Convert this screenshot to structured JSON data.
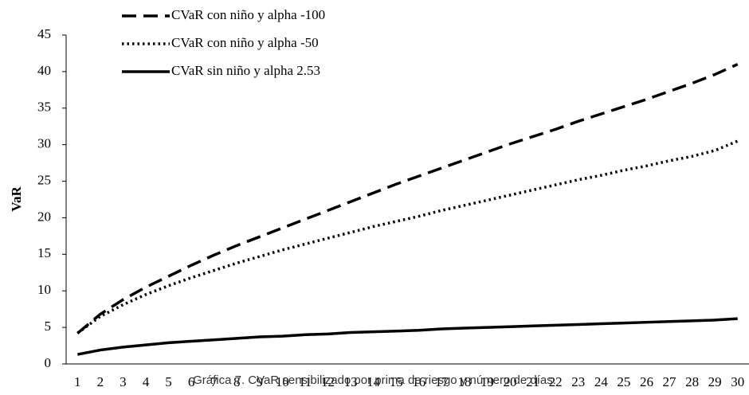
{
  "chart_data": {
    "type": "line",
    "y_label": "VaR",
    "caption": "Gráfica 7. CVaR sensibilizado por prima de riesgo y número de días.",
    "categories": [
      "1",
      "2",
      "3",
      "4",
      "5",
      "6",
      "7",
      "8",
      "9",
      "10",
      "11",
      "12",
      "13",
      "14",
      "15",
      "16",
      "17",
      "18",
      "19",
      "20",
      "21",
      "22",
      "23",
      "24",
      "25",
      "26",
      "27",
      "28",
      "29",
      "30"
    ],
    "ylim": [
      0,
      45
    ],
    "yticks": [
      0,
      5,
      10,
      15,
      20,
      25,
      30,
      35,
      40,
      45
    ],
    "grid": false,
    "legend": "top-left",
    "series": [
      {
        "name": "CVaR con niño y alpha -100",
        "color": "#000000",
        "dash": "dashed",
        "values": [
          4.2,
          6.8,
          8.8,
          10.5,
          12.0,
          13.5,
          14.9,
          16.2,
          17.4,
          18.6,
          19.8,
          21.0,
          22.2,
          23.4,
          24.6,
          25.7,
          26.8,
          27.9,
          29.0,
          30.1,
          31.1,
          32.1,
          33.2,
          34.2,
          35.2,
          36.2,
          37.3,
          38.4,
          39.6,
          41.0
        ]
      },
      {
        "name": "CVaR con niño y alpha -50",
        "color": "#000000",
        "dash": "dotted",
        "values": [
          4.2,
          6.5,
          8.1,
          9.5,
          10.7,
          11.8,
          12.8,
          13.8,
          14.7,
          15.6,
          16.4,
          17.2,
          18.0,
          18.8,
          19.5,
          20.2,
          21.0,
          21.7,
          22.4,
          23.1,
          23.8,
          24.5,
          25.2,
          25.8,
          26.5,
          27.1,
          27.8,
          28.4,
          29.2,
          30.5
        ]
      },
      {
        "name": "CVaR sin niño y alpha 2.53",
        "color": "#000000",
        "dash": "solid",
        "values": [
          1.3,
          1.9,
          2.3,
          2.6,
          2.9,
          3.1,
          3.3,
          3.5,
          3.7,
          3.8,
          4.0,
          4.1,
          4.3,
          4.4,
          4.5,
          4.6,
          4.8,
          4.9,
          5.0,
          5.1,
          5.2,
          5.3,
          5.4,
          5.5,
          5.6,
          5.7,
          5.8,
          5.9,
          6.0,
          6.2
        ]
      }
    ]
  }
}
